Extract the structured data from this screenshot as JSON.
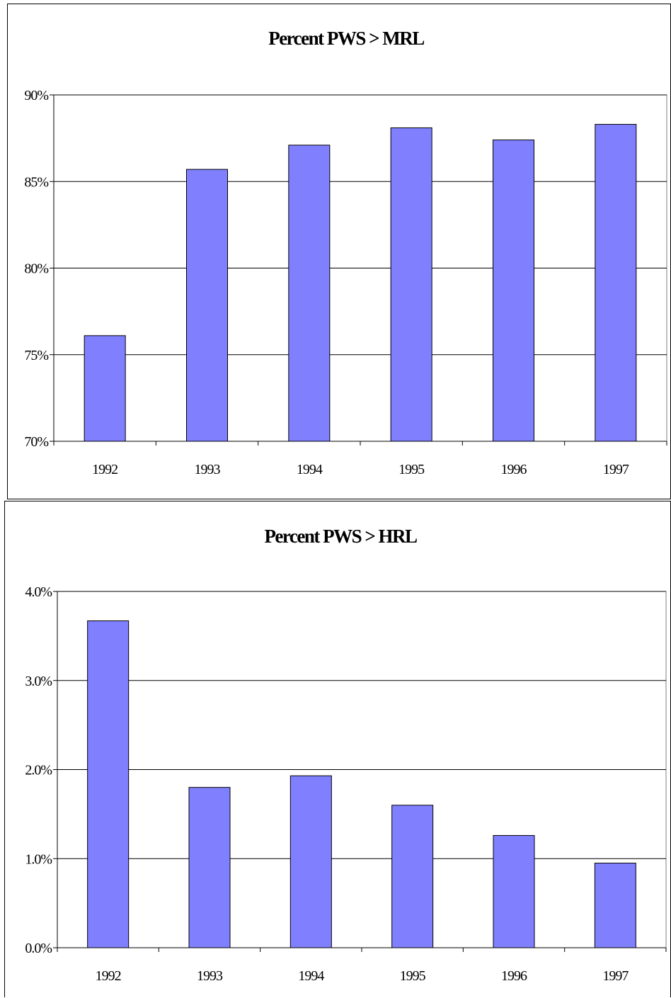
{
  "chart_data": [
    {
      "type": "bar",
      "title": "Percent PWS > MRL",
      "xlabel": "",
      "ylabel": "",
      "categories": [
        "1992",
        "1993",
        "1994",
        "1995",
        "1996",
        "1997"
      ],
      "values": [
        76.1,
        85.7,
        87.1,
        88.1,
        87.4,
        88.3
      ],
      "ylim": [
        70,
        90
      ],
      "yticks": [
        70,
        75,
        80,
        85,
        90
      ],
      "ytick_labels": [
        "70%",
        "75%",
        "80%",
        "85%",
        "90%"
      ],
      "grid": true,
      "bar_color": "#8080ff"
    },
    {
      "type": "bar",
      "title": "Percent PWS > HRL",
      "xlabel": "",
      "ylabel": "",
      "categories": [
        "1992",
        "1993",
        "1994",
        "1995",
        "1996",
        "1997"
      ],
      "values": [
        3.67,
        1.8,
        1.93,
        1.6,
        1.26,
        0.95
      ],
      "ylim": [
        0,
        4
      ],
      "yticks": [
        0,
        1,
        2,
        3,
        4
      ],
      "ytick_labels": [
        "0.0%",
        "1.0%",
        "2.0%",
        "3.0%",
        "4.0%"
      ],
      "grid": true,
      "bar_color": "#8080ff"
    }
  ]
}
